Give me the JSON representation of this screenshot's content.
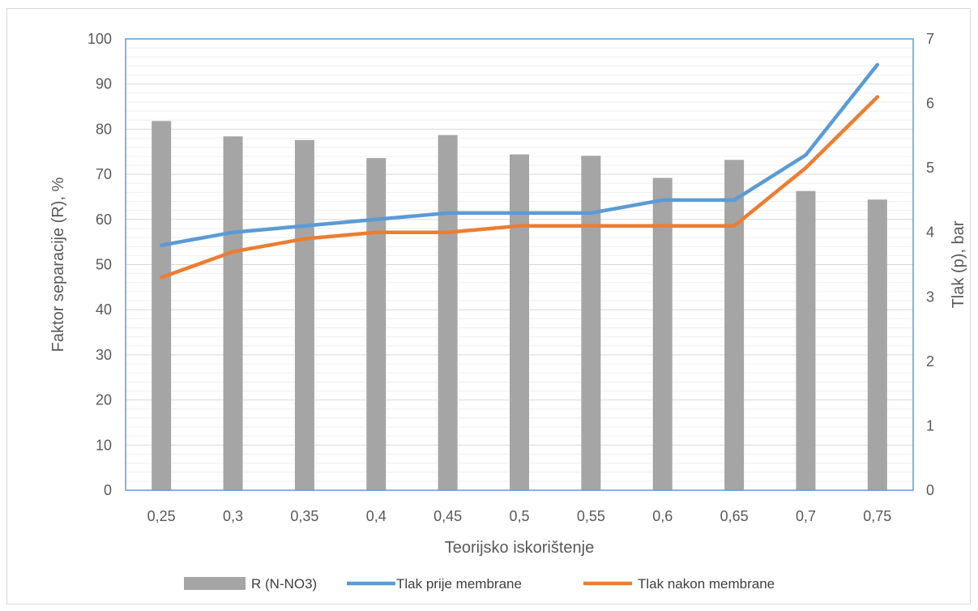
{
  "chart_data": {
    "type": "bar",
    "categories": [
      "0,25",
      "0,3",
      "0,35",
      "0,4",
      "0,45",
      "0,5",
      "0,55",
      "0,6",
      "0,65",
      "0,7",
      "0,75"
    ],
    "xlabel": "Teorijsko  iskorištenje",
    "ylabel": "Faktor separacije (R), %",
    "y2label": "Tlak (p), bar",
    "ylim": [
      0,
      100
    ],
    "y2lim": [
      0,
      7
    ],
    "yticks": [
      "0",
      "10",
      "20",
      "30",
      "40",
      "50",
      "60",
      "70",
      "80",
      "90",
      "100"
    ],
    "y2ticks": [
      "0",
      "1",
      "2",
      "3",
      "4",
      "5",
      "6",
      "7"
    ],
    "grid": true,
    "legend_position": "bottom",
    "series": [
      {
        "name": "R (N-NO3)",
        "type": "bar",
        "axis": "left",
        "color": "#a5a5a5",
        "values": [
          81.8,
          78.4,
          77.6,
          73.6,
          78.7,
          74.4,
          74.1,
          69.2,
          73.2,
          66.3,
          64.4
        ]
      },
      {
        "name": "Tlak prije membrane",
        "type": "line",
        "axis": "right",
        "color": "#5b9bd5",
        "values": [
          3.8,
          4.0,
          4.1,
          4.2,
          4.3,
          4.3,
          4.3,
          4.5,
          4.5,
          5.2,
          6.6
        ]
      },
      {
        "name": "Tlak nakon membrane",
        "type": "line",
        "axis": "right",
        "color": "#ed7d31",
        "values": [
          3.3,
          3.7,
          3.9,
          4.0,
          4.0,
          4.1,
          4.1,
          4.1,
          4.1,
          5.0,
          6.1
        ]
      }
    ]
  }
}
